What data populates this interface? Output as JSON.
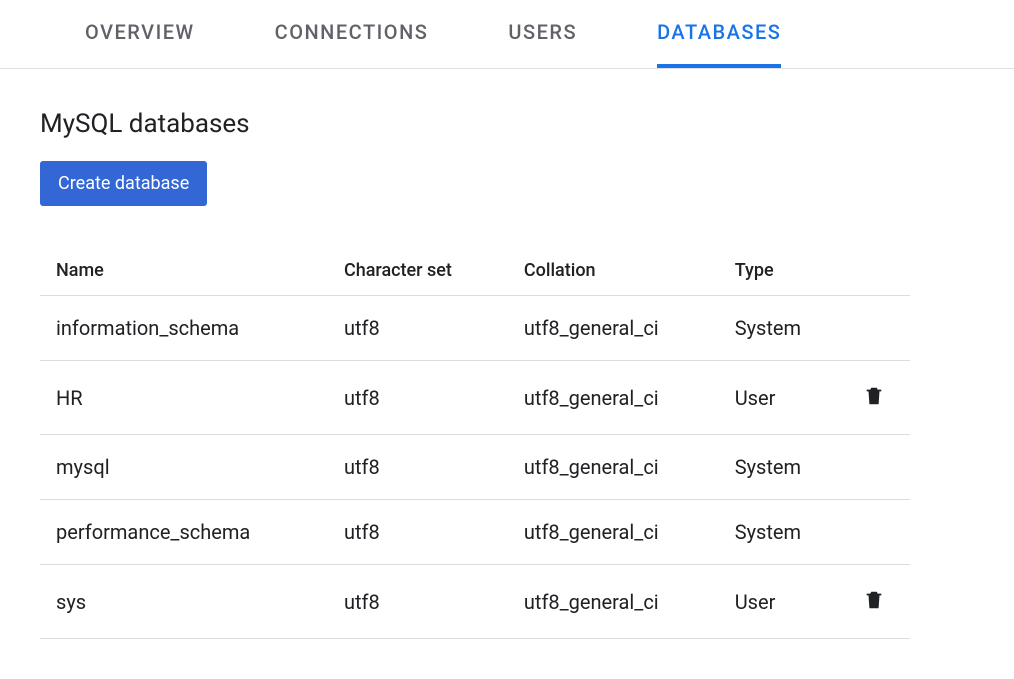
{
  "tabs": [
    {
      "label": "OVERVIEW",
      "active": false
    },
    {
      "label": "CONNECTIONS",
      "active": false
    },
    {
      "label": "USERS",
      "active": false
    },
    {
      "label": "DATABASES",
      "active": true
    }
  ],
  "section": {
    "title": "MySQL databases",
    "create_button_label": "Create database"
  },
  "table": {
    "columns": {
      "name": "Name",
      "charset": "Character set",
      "collation": "Collation",
      "type": "Type"
    },
    "rows": [
      {
        "name": "information_schema",
        "charset": "utf8",
        "collation": "utf8_general_ci",
        "type": "System",
        "deletable": false
      },
      {
        "name": "HR",
        "charset": "utf8",
        "collation": "utf8_general_ci",
        "type": "User",
        "deletable": true
      },
      {
        "name": "mysql",
        "charset": "utf8",
        "collation": "utf8_general_ci",
        "type": "System",
        "deletable": false
      },
      {
        "name": "performance_schema",
        "charset": "utf8",
        "collation": "utf8_general_ci",
        "type": "System",
        "deletable": false
      },
      {
        "name": "sys",
        "charset": "utf8",
        "collation": "utf8_general_ci",
        "type": "User",
        "deletable": true
      }
    ]
  },
  "colors": {
    "tab_inactive": "#5f6368",
    "tab_active": "#1a73e8",
    "button_bg": "#3367d6",
    "button_text": "#ffffff",
    "text": "#202124",
    "border": "#dadce0",
    "tabs_border": "#e0e0e0"
  }
}
